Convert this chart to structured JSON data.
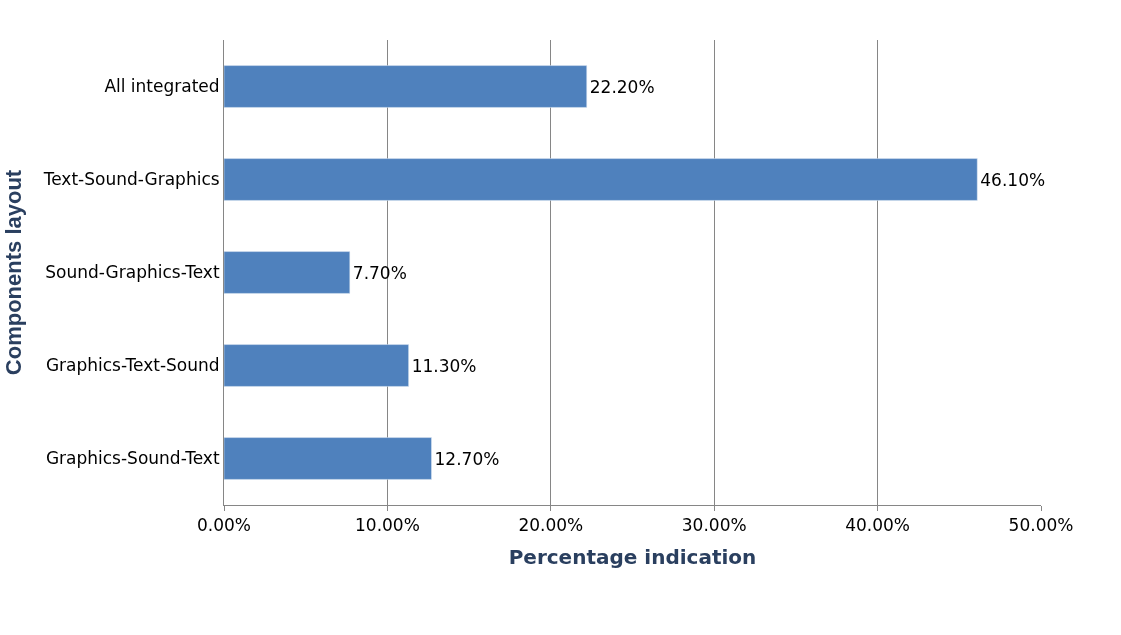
{
  "chart_data": {
    "type": "bar",
    "orientation": "horizontal",
    "xlabel": "Percentage indication",
    "ylabel": "Components layout",
    "categories": [
      "All integrated",
      "Text-Sound-Graphics",
      "Sound-Graphics-Text",
      "Graphics-Text-Sound",
      "Graphics-Sound-Text"
    ],
    "values": [
      22.2,
      46.1,
      7.7,
      11.3,
      12.7
    ],
    "value_labels": [
      "22.20%",
      "46.10%",
      "7.70%",
      "11.30%",
      "12.70%"
    ],
    "color": "#4f81bd",
    "xlim": [
      0,
      50
    ],
    "xticks": [
      {
        "value": 0,
        "label": "0.00%"
      },
      {
        "value": 10,
        "label": "10.00%"
      },
      {
        "value": 20,
        "label": "20.00%"
      },
      {
        "value": 30,
        "label": "30.00%"
      },
      {
        "value": 40,
        "label": "40.00%"
      },
      {
        "value": 50,
        "label": "50.00%"
      }
    ],
    "grid": "x",
    "legend": false
  }
}
